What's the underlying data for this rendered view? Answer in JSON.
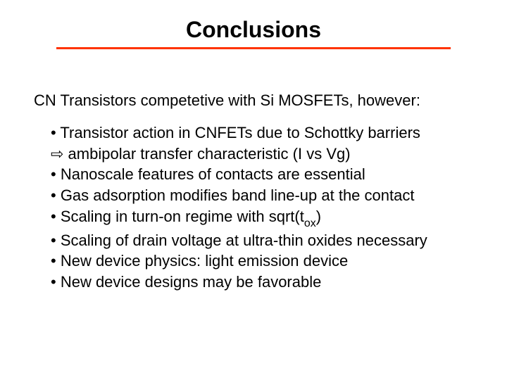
{
  "colors": {
    "rule": "#ff3300",
    "text": "#000000",
    "background": "#ffffff"
  },
  "title": {
    "text": "Conclusions",
    "fontsize": 32,
    "weight": "bold"
  },
  "intro": {
    "text": "CN Transistors competetive with Si MOSFETs, however:",
    "fontsize": 22
  },
  "bullets": {
    "fontsize": 22,
    "lines": [
      "• Transistor action in CNFETs due to Schottky barriers",
      "⇨ ambipolar transfer characteristic (I vs Vg)",
      "• Nanoscale features of contacts are essential",
      "• Gas adsorption modifies band line-up at the contact",
      "• Scaling in turn-on regime with sqrt(t",
      "ox",
      ")",
      "• Scaling of drain voltage at ultra-thin oxides necessary",
      "• New device physics: light emission device",
      "• New device designs may be favorable"
    ]
  }
}
